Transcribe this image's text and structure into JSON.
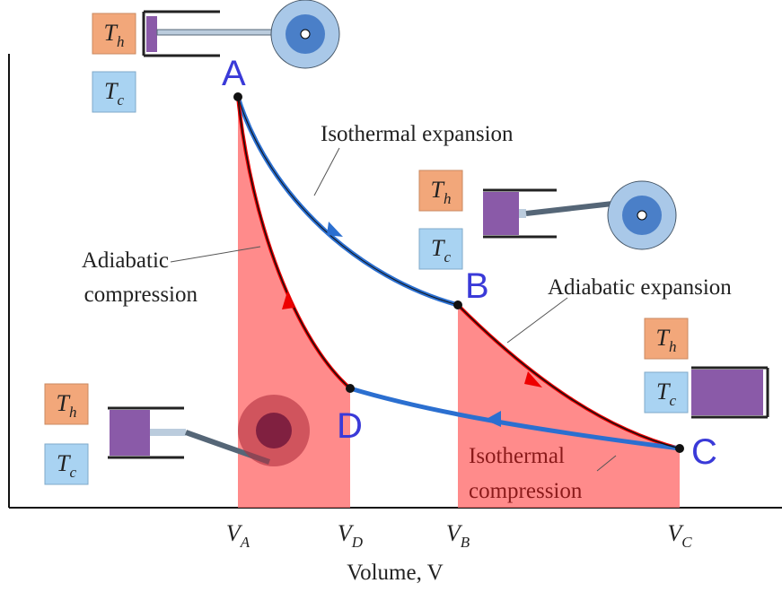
{
  "points": [
    "A",
    "B",
    "C",
    "D"
  ],
  "volume_ticks": [
    {
      "symbol": "V",
      "subscript": "A"
    },
    {
      "symbol": "V",
      "subscript": "D"
    },
    {
      "symbol": "V",
      "subscript": "B"
    },
    {
      "symbol": "V",
      "subscript": "C"
    }
  ],
  "x_axis_title": "Volume, V",
  "annotations": {
    "isothermal_expansion": "Isothermal expansion",
    "adiabatic_expansion": "Adiabatic expansion",
    "adiabatic_compression": [
      "Adiabatic",
      "compression"
    ],
    "isothermal_compression": [
      "Isothermal",
      "compression"
    ]
  },
  "reservoirs": [
    {
      "hot": {
        "symbol": "T",
        "subscript": "h"
      },
      "cold": {
        "symbol": "T",
        "subscript": "c"
      }
    },
    {
      "hot": {
        "symbol": "T",
        "subscript": "h"
      },
      "cold": {
        "symbol": "T",
        "subscript": "c"
      }
    },
    {
      "hot": {
        "symbol": "T",
        "subscript": "h"
      },
      "cold": {
        "symbol": "T",
        "subscript": "c"
      }
    },
    {
      "hot": {
        "symbol": "T",
        "subscript": "h"
      },
      "cold": {
        "symbol": "T",
        "subscript": "c"
      }
    }
  ]
}
